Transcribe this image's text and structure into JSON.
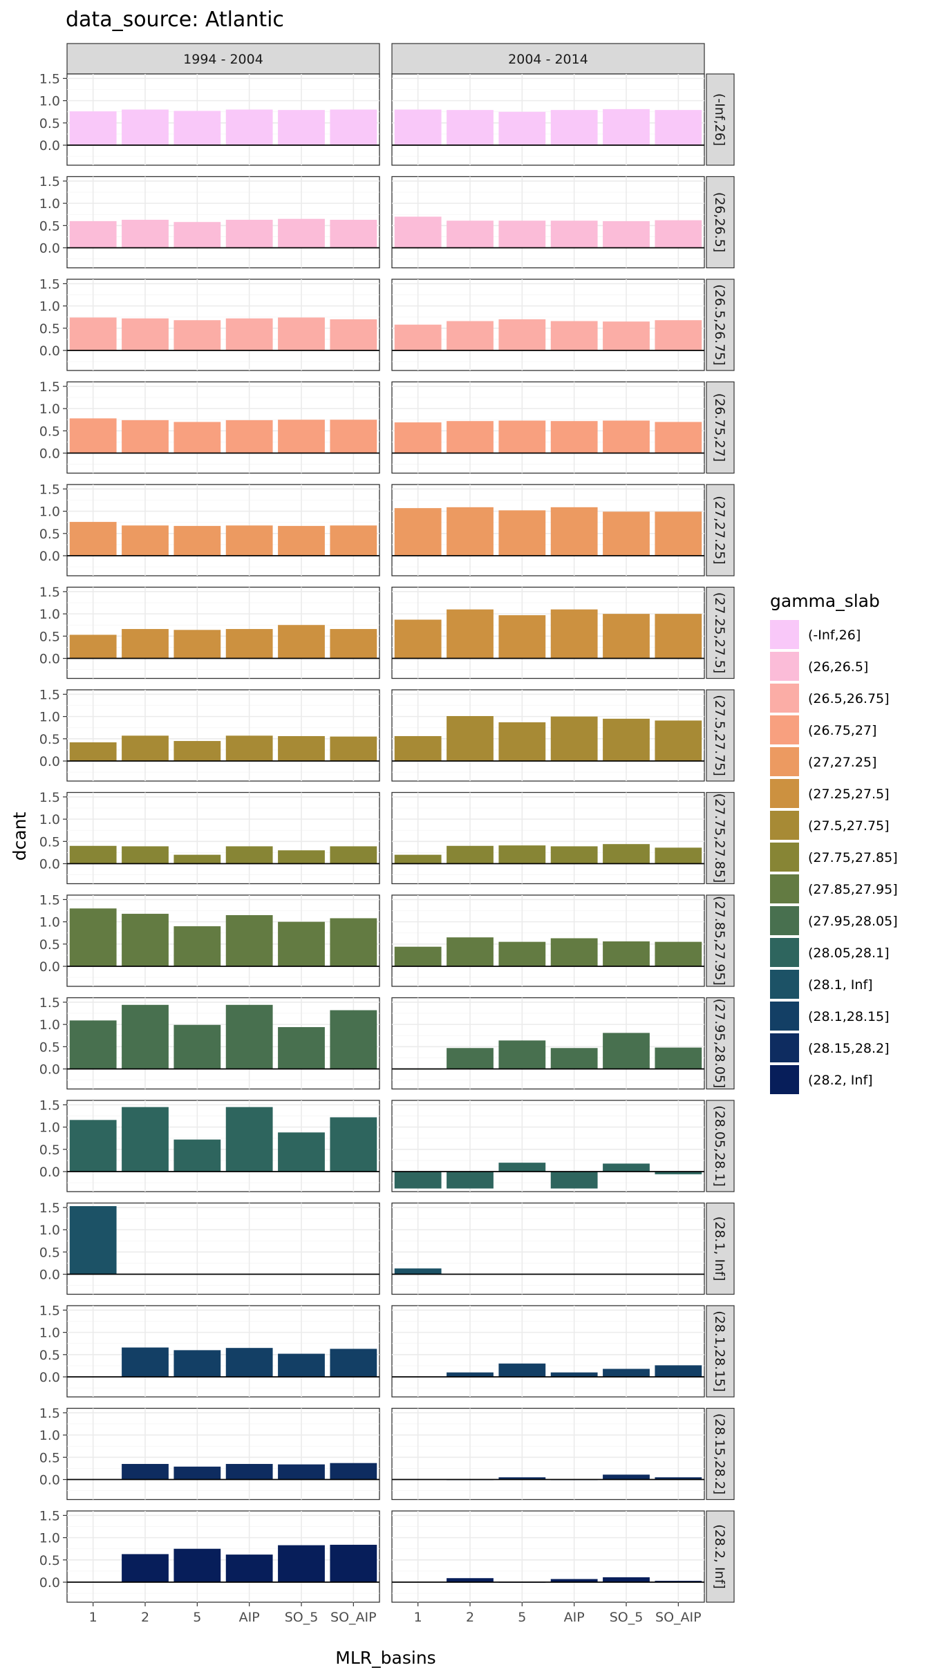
{
  "chart_data": {
    "type": "bar",
    "title": "data_source: Atlantic",
    "xlabel": "MLR_basins",
    "ylabel": "dcant",
    "categories": [
      "1",
      "2",
      "5",
      "AIP",
      "SO_5",
      "SO_AIP"
    ],
    "columns": [
      "1994 - 2004",
      "2004 - 2014"
    ],
    "ylim": [
      -0.45,
      1.6
    ],
    "yticks": [
      "0.0",
      "0.5",
      "1.0",
      "1.5"
    ],
    "ytick_values": [
      0,
      0.5,
      1.0,
      1.5
    ],
    "grid": true,
    "legend": {
      "title": "gamma_slab",
      "placement": "right",
      "entries": [
        {
          "label": "(-Inf,26]",
          "color": "#F9C8F9"
        },
        {
          "label": "(26,26.5]",
          "color": "#FBBCD8"
        },
        {
          "label": "(26.5,26.75]",
          "color": "#FBADA6"
        },
        {
          "label": "(26.75,27]",
          "color": "#F8A07F"
        },
        {
          "label": "(27,27.25]",
          "color": "#EC9A61"
        },
        {
          "label": "(27.25,27.5]",
          "color": "#CC9140"
        },
        {
          "label": "(27.5,27.75]",
          "color": "#A78A35"
        },
        {
          "label": "(27.75,27.85]",
          "color": "#878535"
        },
        {
          "label": "(27.85,27.95]",
          "color": "#637B42"
        },
        {
          "label": "(27.95,28.05]",
          "color": "#48704F"
        },
        {
          "label": "(28.05,28.1]",
          "color": "#2E655E"
        },
        {
          "label": "(28.1, Inf]",
          "color": "#1C5266"
        },
        {
          "label": "(28.1,28.15]",
          "color": "#133F65"
        },
        {
          "label": "(28.15,28.2]",
          "color": "#0E2C60"
        },
        {
          "label": "(28.2, Inf]",
          "color": "#071E5A"
        }
      ]
    },
    "rows": [
      {
        "label": "(-Inf,26]",
        "color": "#F9C8F9",
        "values": [
          [
            0.76,
            0.8,
            0.77,
            0.8,
            0.79,
            0.8
          ],
          [
            0.8,
            0.79,
            0.75,
            0.79,
            0.81,
            0.79
          ]
        ]
      },
      {
        "label": "(26,26.5]",
        "color": "#FBBCD8",
        "values": [
          [
            0.6,
            0.63,
            0.58,
            0.63,
            0.65,
            0.63
          ],
          [
            0.7,
            0.61,
            0.61,
            0.61,
            0.6,
            0.62
          ]
        ]
      },
      {
        "label": "(26.5,26.75]",
        "color": "#FBADA6",
        "values": [
          [
            0.74,
            0.72,
            0.68,
            0.72,
            0.74,
            0.7
          ],
          [
            0.58,
            0.66,
            0.7,
            0.66,
            0.65,
            0.68
          ]
        ]
      },
      {
        "label": "(26.75,27]",
        "color": "#F8A07F",
        "values": [
          [
            0.78,
            0.74,
            0.7,
            0.74,
            0.75,
            0.75
          ],
          [
            0.69,
            0.72,
            0.73,
            0.72,
            0.73,
            0.7
          ]
        ]
      },
      {
        "label": "(27,27.25]",
        "color": "#EC9A61",
        "values": [
          [
            0.76,
            0.68,
            0.67,
            0.68,
            0.67,
            0.68
          ],
          [
            1.07,
            1.09,
            1.02,
            1.09,
            0.99,
            0.99
          ]
        ]
      },
      {
        "label": "(27.25,27.5]",
        "color": "#CC9140",
        "values": [
          [
            0.53,
            0.66,
            0.64,
            0.66,
            0.75,
            0.66
          ],
          [
            0.87,
            1.1,
            0.97,
            1.1,
            1.0,
            1.0
          ]
        ]
      },
      {
        "label": "(27.5,27.75]",
        "color": "#A78A35",
        "values": [
          [
            0.42,
            0.57,
            0.45,
            0.57,
            0.56,
            0.55
          ],
          [
            0.56,
            1.01,
            0.87,
            1.0,
            0.95,
            0.91
          ]
        ]
      },
      {
        "label": "(27.75,27.85]",
        "color": "#878535",
        "values": [
          [
            0.4,
            0.39,
            0.2,
            0.39,
            0.3,
            0.39
          ],
          [
            0.2,
            0.4,
            0.41,
            0.39,
            0.44,
            0.36
          ]
        ]
      },
      {
        "label": "(27.85,27.95]",
        "color": "#637B42",
        "values": [
          [
            1.3,
            1.18,
            0.9,
            1.15,
            1.0,
            1.08
          ],
          [
            0.44,
            0.65,
            0.55,
            0.63,
            0.56,
            0.55
          ]
        ]
      },
      {
        "label": "(27.95,28.05]",
        "color": "#48704F",
        "values": [
          [
            1.09,
            1.44,
            0.99,
            1.44,
            0.94,
            1.32
          ],
          [
            0.0,
            0.47,
            0.64,
            0.47,
            0.81,
            0.48
          ]
        ]
      },
      {
        "label": "(28.05,28.1]",
        "color": "#2E655E",
        "values": [
          [
            1.16,
            1.45,
            0.72,
            1.45,
            0.88,
            1.22
          ],
          [
            -0.38,
            -0.38,
            0.2,
            -0.38,
            0.18,
            -0.06
          ]
        ]
      },
      {
        "label": "(28.1, Inf]",
        "color": "#1C5266",
        "values": [
          [
            1.53,
            null,
            null,
            null,
            null,
            null
          ],
          [
            0.13,
            null,
            null,
            null,
            null,
            null
          ]
        ]
      },
      {
        "label": "(28.1,28.15]",
        "color": "#133F65",
        "values": [
          [
            null,
            0.66,
            0.6,
            0.65,
            0.52,
            0.63
          ],
          [
            null,
            0.1,
            0.3,
            0.1,
            0.18,
            0.26
          ]
        ]
      },
      {
        "label": "(28.15,28.2]",
        "color": "#0E2C60",
        "values": [
          [
            null,
            0.35,
            0.29,
            0.35,
            0.34,
            0.37
          ],
          [
            null,
            0.0,
            0.05,
            0.0,
            0.11,
            0.05
          ]
        ]
      },
      {
        "label": "(28.2, Inf]",
        "color": "#071E5A",
        "values": [
          [
            null,
            0.63,
            0.75,
            0.62,
            0.83,
            0.84
          ],
          [
            null,
            0.09,
            0.0,
            0.07,
            0.11,
            0.03
          ]
        ]
      }
    ]
  }
}
